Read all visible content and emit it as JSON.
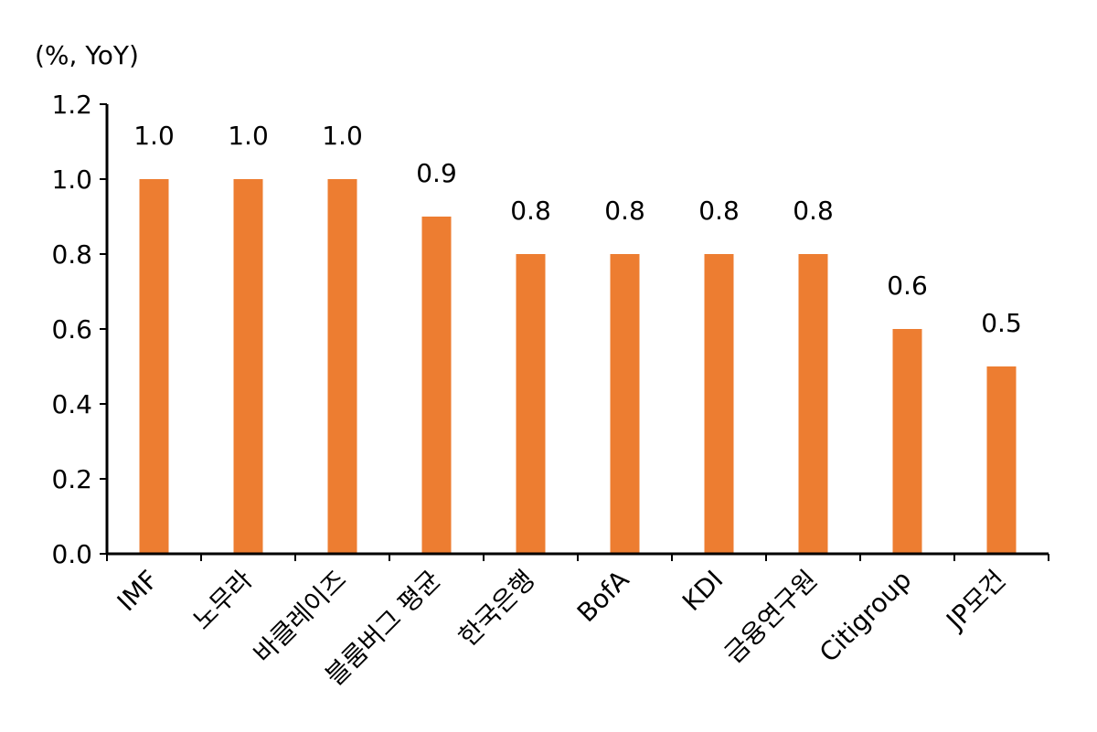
{
  "chart_data": {
    "type": "bar",
    "unit_label": "(%, YoY)",
    "categories": [
      "IMF",
      "노무라",
      "바클레이즈",
      "블룸버그 평균",
      "한국은행",
      "BofA",
      "KDI",
      "금융연구원",
      "Citigroup",
      "JP모건"
    ],
    "values": [
      1.0,
      1.0,
      1.0,
      0.9,
      0.8,
      0.8,
      0.8,
      0.8,
      0.6,
      0.5
    ],
    "value_labels": [
      "1.0",
      "1.0",
      "1.0",
      "0.9",
      "0.8",
      "0.8",
      "0.8",
      "0.8",
      "0.6",
      "0.5"
    ],
    "yticks": [
      "0.0",
      "0.2",
      "0.4",
      "0.6",
      "0.8",
      "1.0",
      "1.2"
    ],
    "ylim": [
      0,
      1.2
    ],
    "bar_color": "#ED7D31",
    "grid": false,
    "legend": "none"
  }
}
